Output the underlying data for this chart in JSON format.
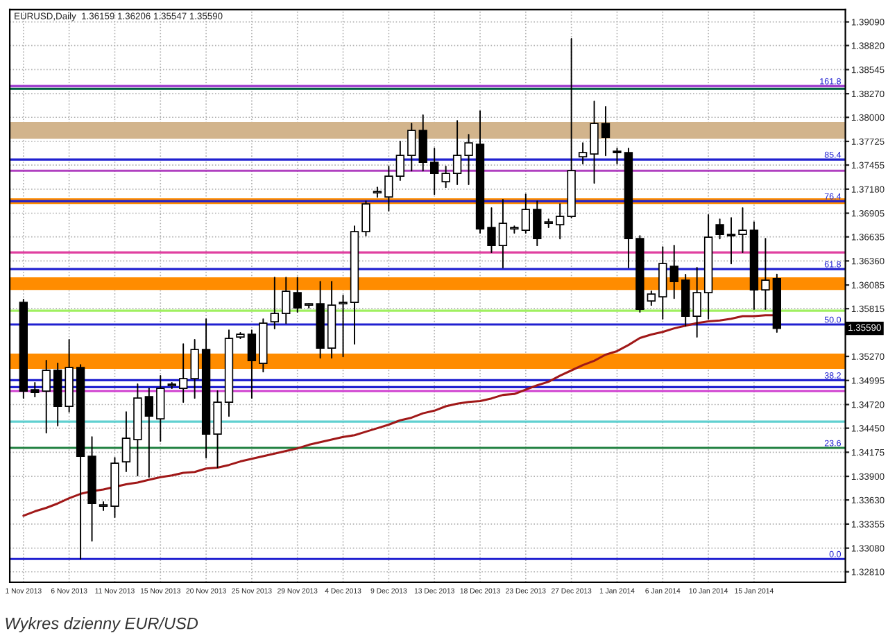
{
  "chart_data": {
    "type": "candlestick",
    "annotations": [
      "EURUSD,Daily  1.36159 1.36206 1.35547 1.35590",
      "Wykres dzienny EUR/USD",
      "1.35590",
      {
        "text": "161.8",
        "y": 1.38357
      },
      {
        "text": "85.4",
        "y": 1.37518
      },
      {
        "text": "76.4",
        "y": 1.37043
      },
      {
        "text": "61.8",
        "y": 1.36267
      },
      {
        "text": "50.0",
        "y": 1.35634
      },
      {
        "text": "38.2",
        "y": 1.34998
      },
      {
        "text": "23.6",
        "y": 1.34225
      },
      {
        "text": "0.0",
        "y": 1.32957
      }
    ],
    "categories": [
      "1 Nov 2013",
      null,
      null,
      null,
      "6 Nov 2013",
      null,
      null,
      null,
      "11 Nov 2013",
      null,
      null,
      null,
      "15 Nov 2013",
      null,
      null,
      null,
      "20 Nov 2013",
      null,
      null,
      null,
      "25 Nov 2013",
      null,
      null,
      null,
      "29 Nov 2013",
      null,
      null,
      null,
      "4 Dec 2013",
      null,
      null,
      null,
      "9 Dec 2013",
      null,
      null,
      null,
      "13 Dec 2013",
      null,
      null,
      null,
      "18 Dec 2013",
      null,
      null,
      null,
      "23 Dec 2013",
      null,
      null,
      null,
      "27 Dec 2013",
      null,
      null,
      null,
      "1 Jan 2014",
      null,
      null,
      null,
      "6 Jan 2014",
      null,
      null,
      null,
      "10 Jan 2014",
      null,
      null,
      null,
      "15 Jan 2014",
      null,
      null
    ],
    "ohlc": [
      [
        1.35887,
        1.35919,
        1.34794,
        1.34874
      ],
      [
        1.34889,
        1.34969,
        1.3481,
        1.34858
      ],
      [
        1.34874,
        1.35222,
        1.34398,
        1.35111
      ],
      [
        1.35111,
        1.3519,
        1.34478,
        1.34699
      ],
      [
        1.34699,
        1.3546,
        1.34636,
        1.35143
      ],
      [
        1.35143,
        1.35174,
        1.32957,
        1.34129
      ],
      [
        1.34129,
        1.34351,
        1.33163,
        1.33591
      ],
      [
        1.33559,
        1.33607,
        1.33512,
        1.33575
      ],
      [
        1.33559,
        1.34113,
        1.33433,
        1.3405
      ],
      [
        1.34066,
        1.34636,
        1.33955,
        1.34335
      ],
      [
        1.34319,
        1.34953,
        1.33908,
        1.34794
      ],
      [
        1.3481,
        1.34905,
        1.33892,
        1.34588
      ],
      [
        1.34557,
        1.35048,
        1.34303,
        1.34905
      ],
      [
        1.34937,
        1.34969,
        1.34905,
        1.34953
      ],
      [
        1.34905,
        1.35412,
        1.34747,
        1.35016
      ],
      [
        1.35016,
        1.3546,
        1.34794,
        1.35349
      ],
      [
        1.35349,
        1.35697,
        1.34113,
        1.34383
      ],
      [
        1.34383,
        1.34874,
        1.34003,
        1.34747
      ],
      [
        1.34747,
        1.3557,
        1.34588,
        1.35475
      ],
      [
        1.35491,
        1.35539,
        1.35475,
        1.35523
      ],
      [
        1.35523,
        1.3557,
        1.34794,
        1.35222
      ],
      [
        1.3519,
        1.35697,
        1.35095,
        1.35649
      ],
      [
        1.35665,
        1.36172,
        1.35586,
        1.3576
      ],
      [
        1.3576,
        1.36172,
        1.35649,
        1.36014
      ],
      [
        1.35998,
        1.36172,
        1.35776,
        1.35824
      ],
      [
        1.35855,
        1.35871,
        1.35824,
        1.35871
      ],
      [
        1.35871,
        1.36124,
        1.35253,
        1.35364
      ],
      [
        1.35364,
        1.36124,
        1.35253,
        1.35855
      ],
      [
        1.35871,
        1.35966,
        1.35269,
        1.35887
      ],
      [
        1.35887,
        1.36758,
        1.35412,
        1.36695
      ],
      [
        1.36695,
        1.37043,
        1.36647,
        1.37011
      ],
      [
        1.37138,
        1.37201,
        1.3709,
        1.37154
      ],
      [
        1.3709,
        1.37439,
        1.36932,
        1.37328
      ],
      [
        1.37328,
        1.37724,
        1.37281,
        1.37565
      ],
      [
        1.37565,
        1.3793,
        1.37391,
        1.37851
      ],
      [
        1.37851,
        1.38025,
        1.37391,
        1.37486
      ],
      [
        1.37486,
        1.37645,
        1.37122,
        1.3736
      ],
      [
        1.37265,
        1.37439,
        1.37201,
        1.3736
      ],
      [
        1.3736,
        1.37961,
        1.37233,
        1.37565
      ],
      [
        1.37565,
        1.37803,
        1.37233,
        1.37708
      ],
      [
        1.37692,
        1.38072,
        1.36679,
        1.36726
      ],
      [
        1.36742,
        1.36964,
        1.36457,
        1.36536
      ],
      [
        1.36536,
        1.37059,
        1.36283,
        1.3679
      ],
      [
        1.36726,
        1.36758,
        1.36679,
        1.36742
      ],
      [
        1.3671,
        1.37122,
        1.36679,
        1.36948
      ],
      [
        1.36948,
        1.37043,
        1.36536,
        1.36615
      ],
      [
        1.3679,
        1.36837,
        1.36742,
        1.36805
      ],
      [
        1.36774,
        1.37011,
        1.36615,
        1.36869
      ],
      [
        1.36869,
        1.38896,
        1.36853,
        1.37391
      ],
      [
        1.3755,
        1.37708,
        1.3747,
        1.37597
      ],
      [
        1.37581,
        1.38183,
        1.37249,
        1.3793
      ],
      [
        1.3793,
        1.3812,
        1.37565,
        1.37771
      ],
      [
        1.37613,
        1.37645,
        1.3747,
        1.37597
      ],
      [
        1.37597,
        1.37645,
        1.36283,
        1.36615
      ],
      [
        1.36615,
        1.36647,
        1.35776,
        1.35808
      ],
      [
        1.35903,
        1.36014,
        1.35855,
        1.35982
      ],
      [
        1.3595,
        1.3652,
        1.35697,
        1.3633
      ],
      [
        1.36299,
        1.36536,
        1.35934,
        1.36124
      ],
      [
        1.3614,
        1.36204,
        1.35618,
        1.35729
      ],
      [
        1.35729,
        1.36283,
        1.35491,
        1.35998
      ],
      [
        1.35998,
        1.36885,
        1.35697,
        1.36631
      ],
      [
        1.36774,
        1.36837,
        1.36615,
        1.36663
      ],
      [
        1.36663,
        1.36853,
        1.3633,
        1.36647
      ],
      [
        1.36663,
        1.36964,
        1.36457,
        1.3671
      ],
      [
        1.3671,
        1.36805,
        1.35808,
        1.36029
      ],
      [
        1.36029,
        1.36615,
        1.35808,
        1.3614
      ],
      [
        1.36159,
        1.36206,
        1.35547,
        1.3559
      ]
    ],
    "series": [
      {
        "type": "line",
        "color": "#a01818",
        "values": [
          1.3345,
          1.335,
          1.3354,
          1.3359,
          1.3365,
          1.337,
          1.3373,
          1.3375,
          1.3378,
          1.3381,
          1.3383,
          1.3386,
          1.3389,
          1.3391,
          1.3394,
          1.3395,
          1.3399,
          1.34,
          1.3403,
          1.3407,
          1.341,
          1.3413,
          1.3416,
          1.3419,
          1.3422,
          1.3426,
          1.3429,
          1.3432,
          1.3435,
          1.3437,
          1.3441,
          1.3445,
          1.3449,
          1.3454,
          1.3457,
          1.3462,
          1.3465,
          1.347,
          1.3473,
          1.3475,
          1.3476,
          1.3479,
          1.3483,
          1.3484,
          1.3489,
          1.3494,
          1.3498,
          1.3505,
          1.3511,
          1.3517,
          1.3522,
          1.3529,
          1.3533,
          1.354,
          1.3548,
          1.3552,
          1.3555,
          1.3559,
          1.3562,
          1.3565,
          1.3567,
          1.3568,
          1.357,
          1.3573,
          1.3573,
          1.3574,
          1.3574
        ]
      }
    ],
    "ylim": [
      1.3269,
      1.3923
    ],
    "yticks": [
      {
        "value": 1.3909,
        "label": "1.39090"
      },
      {
        "value": 1.3882,
        "label": "1.38820"
      },
      {
        "value": 1.38545,
        "label": "1.38545"
      },
      {
        "value": 1.3827,
        "label": "1.38270"
      },
      {
        "value": 1.38,
        "label": "1.38000"
      },
      {
        "value": 1.37725,
        "label": "1.37725"
      },
      {
        "value": 1.37455,
        "label": "1.37455"
      },
      {
        "value": 1.3718,
        "label": "1.37180"
      },
      {
        "value": 1.36905,
        "label": "1.36905"
      },
      {
        "value": 1.36635,
        "label": "1.36635"
      },
      {
        "value": 1.3636,
        "label": "1.36360"
      },
      {
        "value": 1.36085,
        "label": "1.36085"
      },
      {
        "value": 1.35815,
        "label": "1.35815"
      },
      {
        "value": 1.3527,
        "label": "1.35270"
      },
      {
        "value": 1.34995,
        "label": "1.34995"
      },
      {
        "value": 1.3472,
        "label": "1.34720"
      },
      {
        "value": 1.3445,
        "label": "1.34450"
      },
      {
        "value": 1.34175,
        "label": "1.34175"
      },
      {
        "value": 1.339,
        "label": "1.33900"
      },
      {
        "value": 1.3363,
        "label": "1.33630"
      },
      {
        "value": 1.33355,
        "label": "1.33355"
      },
      {
        "value": 1.3308,
        "label": "1.33080"
      },
      {
        "value": 1.3281,
        "label": "1.32810"
      }
    ],
    "ref_lines": [
      {
        "axis": "y",
        "value": 1.38357,
        "color": "#9932cc"
      },
      {
        "axis": "y",
        "value": 1.38325,
        "color": "#006040"
      },
      {
        "axis": "y",
        "value": 1.37518,
        "color": "#2020d0"
      },
      {
        "axis": "y",
        "value": 1.37391,
        "color": "#b040c0"
      },
      {
        "axis": "y",
        "value": 1.37043,
        "color": "#2020d0"
      },
      {
        "axis": "y",
        "value": 1.36457,
        "color": "#e040a0"
      },
      {
        "axis": "y",
        "value": 1.36267,
        "color": "#2020d0"
      },
      {
        "axis": "y",
        "value": 1.35792,
        "color": "#a0f060"
      },
      {
        "axis": "y",
        "value": 1.35634,
        "color": "#2020d0"
      },
      {
        "axis": "y",
        "value": 1.34998,
        "color": "#2020d0"
      },
      {
        "axis": "y",
        "value": 1.34919,
        "color": "#2020d0"
      },
      {
        "axis": "y",
        "value": 1.34874,
        "color": "#d040d0"
      },
      {
        "axis": "y",
        "value": 1.34525,
        "color": "#60d0d0"
      },
      {
        "axis": "y",
        "value": 1.34225,
        "color": "#208040"
      },
      {
        "axis": "y",
        "value": 1.32957,
        "color": "#2020d0"
      }
    ],
    "bands": [
      {
        "axis": "y",
        "from": 1.37756,
        "to": 1.37946,
        "color": "#d2b48c"
      },
      {
        "axis": "y",
        "from": 1.37011,
        "to": 1.37075,
        "color": "#ff8c00"
      },
      {
        "axis": "y",
        "from": 1.36029,
        "to": 1.36172,
        "color": "#ff8c00"
      },
      {
        "axis": "y",
        "from": 1.35127,
        "to": 1.35301,
        "color": "#ff8c00"
      }
    ],
    "grid": true
  }
}
